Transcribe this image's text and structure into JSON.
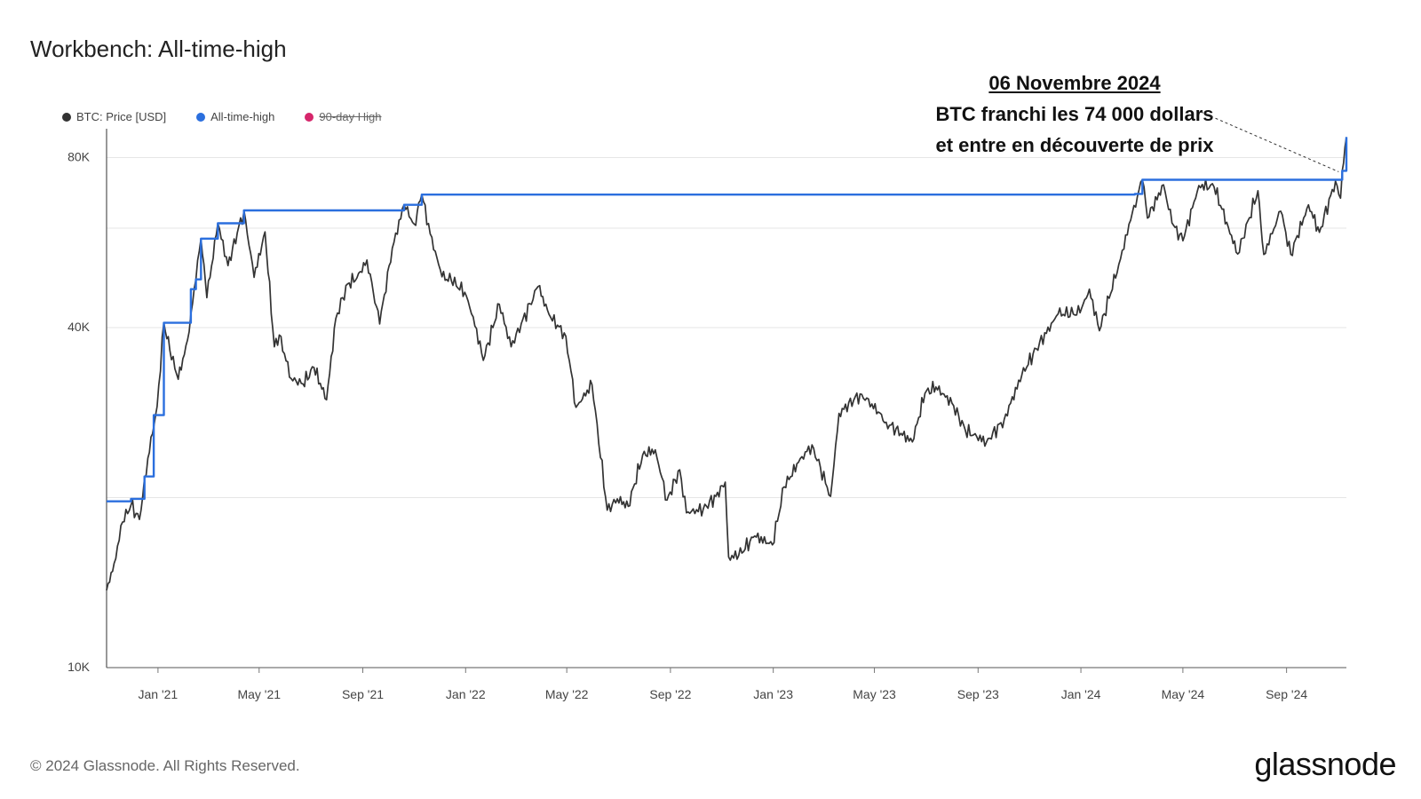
{
  "header": {
    "title": "Workbench: All-time-high"
  },
  "legend": [
    {
      "label": "BTC: Price [USD]",
      "color": "#333333",
      "active": true
    },
    {
      "label": "All-time-high",
      "color": "#2b6fde",
      "active": true
    },
    {
      "label": "90-day High",
      "color": "#d6266b",
      "active": false
    }
  ],
  "annotation": {
    "date": "06 Novembre 2024",
    "line1": "BTC franchi les 74 000 dollars",
    "line2": "et entre en découverte de prix"
  },
  "footer": {
    "copyright": "© 2024 Glassnode. All Rights Reserved.",
    "brand": "glassnode"
  },
  "chart_data": {
    "type": "line",
    "yscale": "log",
    "ylim": [
      10000,
      90000
    ],
    "yticks": [
      {
        "value": 10000,
        "label": "10K"
      },
      {
        "value": 40000,
        "label": "40K"
      },
      {
        "value": 80000,
        "label": "80K"
      }
    ],
    "ygrid": [
      20000,
      40000,
      60000,
      80000
    ],
    "xlim": [
      "2020-11-01",
      "2024-11-11"
    ],
    "xticks": [
      {
        "date": "2021-01-01",
        "label": "Jan '21"
      },
      {
        "date": "2021-05-01",
        "label": "May '21"
      },
      {
        "date": "2021-09-01",
        "label": "Sep '21"
      },
      {
        "date": "2022-01-01",
        "label": "Jan '22"
      },
      {
        "date": "2022-05-01",
        "label": "May '22"
      },
      {
        "date": "2022-09-01",
        "label": "Sep '22"
      },
      {
        "date": "2023-01-01",
        "label": "Jan '23"
      },
      {
        "date": "2023-05-01",
        "label": "May '23"
      },
      {
        "date": "2023-09-01",
        "label": "Sep '23"
      },
      {
        "date": "2024-01-01",
        "label": "Jan '24"
      },
      {
        "date": "2024-05-01",
        "label": "May '24"
      },
      {
        "date": "2024-09-01",
        "label": "Sep '24"
      }
    ],
    "series": [
      {
        "name": "BTC: Price [USD]",
        "color": "#333333",
        "points": [
          [
            "2020-11-01",
            13700
          ],
          [
            "2020-11-10",
            15300
          ],
          [
            "2020-11-20",
            18100
          ],
          [
            "2020-11-30",
            19400
          ],
          [
            "2020-12-10",
            18300
          ],
          [
            "2020-12-20",
            23500
          ],
          [
            "2020-12-31",
            29000
          ],
          [
            "2021-01-08",
            40800
          ],
          [
            "2021-01-15",
            36500
          ],
          [
            "2021-01-25",
            32400
          ],
          [
            "2021-02-05",
            38000
          ],
          [
            "2021-02-15",
            48700
          ],
          [
            "2021-02-21",
            57500
          ],
          [
            "2021-02-28",
            45200
          ],
          [
            "2021-03-13",
            61200
          ],
          [
            "2021-03-25",
            51500
          ],
          [
            "2021-04-05",
            58800
          ],
          [
            "2021-04-13",
            64500
          ],
          [
            "2021-04-25",
            49100
          ],
          [
            "2021-05-08",
            59100
          ],
          [
            "2021-05-19",
            37000
          ],
          [
            "2021-05-25",
            38800
          ],
          [
            "2021-06-08",
            32500
          ],
          [
            "2021-06-22",
            31800
          ],
          [
            "2021-07-05",
            34000
          ],
          [
            "2021-07-20",
            29800
          ],
          [
            "2021-07-31",
            41500
          ],
          [
            "2021-08-14",
            47800
          ],
          [
            "2021-08-25",
            49000
          ],
          [
            "2021-09-06",
            52700
          ],
          [
            "2021-09-21",
            40600
          ],
          [
            "2021-10-06",
            55300
          ],
          [
            "2021-10-20",
            66000
          ],
          [
            "2021-11-01",
            61000
          ],
          [
            "2021-11-10",
            68800
          ],
          [
            "2021-11-20",
            58600
          ],
          [
            "2021-12-04",
            49200
          ],
          [
            "2021-12-15",
            48500
          ],
          [
            "2021-12-31",
            46200
          ],
          [
            "2022-01-10",
            41800
          ],
          [
            "2022-01-22",
            35000
          ],
          [
            "2022-02-10",
            44000
          ],
          [
            "2022-02-24",
            37000
          ],
          [
            "2022-03-28",
            47300
          ],
          [
            "2022-04-10",
            42200
          ],
          [
            "2022-04-30",
            38600
          ],
          [
            "2022-05-12",
            28900
          ],
          [
            "2022-05-31",
            31700
          ],
          [
            "2022-06-18",
            19000
          ],
          [
            "2022-06-30",
            19900
          ],
          [
            "2022-07-13",
            19300
          ],
          [
            "2022-07-30",
            23800
          ],
          [
            "2022-08-14",
            24300
          ],
          [
            "2022-08-28",
            19800
          ],
          [
            "2022-09-12",
            22400
          ],
          [
            "2022-09-20",
            18800
          ],
          [
            "2022-10-10",
            19100
          ],
          [
            "2022-10-25",
            20100
          ],
          [
            "2022-11-05",
            21300
          ],
          [
            "2022-11-09",
            15700
          ],
          [
            "2022-11-21",
            15800
          ],
          [
            "2022-12-10",
            17100
          ],
          [
            "2022-12-31",
            16500
          ],
          [
            "2023-01-14",
            20900
          ],
          [
            "2023-01-31",
            23100
          ],
          [
            "2023-02-16",
            24800
          ],
          [
            "2023-03-10",
            20100
          ],
          [
            "2023-03-20",
            28200
          ],
          [
            "2023-04-14",
            30500
          ],
          [
            "2023-04-28",
            29300
          ],
          [
            "2023-05-15",
            27200
          ],
          [
            "2023-06-15",
            25100
          ],
          [
            "2023-06-30",
            30600
          ],
          [
            "2023-07-13",
            31400
          ],
          [
            "2023-08-01",
            29400
          ],
          [
            "2023-08-17",
            26300
          ],
          [
            "2023-09-11",
            25100
          ],
          [
            "2023-10-02",
            27500
          ],
          [
            "2023-10-23",
            33000
          ],
          [
            "2023-11-09",
            36700
          ],
          [
            "2023-12-05",
            42300
          ],
          [
            "2023-12-31",
            42500
          ],
          [
            "2024-01-11",
            46800
          ],
          [
            "2024-01-23",
            39500
          ],
          [
            "2024-02-15",
            51800
          ],
          [
            "2024-02-29",
            62000
          ],
          [
            "2024-03-14",
            73100
          ],
          [
            "2024-03-20",
            62500
          ],
          [
            "2024-04-08",
            71600
          ],
          [
            "2024-04-18",
            61300
          ],
          [
            "2024-05-01",
            57000
          ],
          [
            "2024-05-20",
            71400
          ],
          [
            "2024-06-07",
            71000
          ],
          [
            "2024-06-24",
            60200
          ],
          [
            "2024-07-05",
            54000
          ],
          [
            "2024-07-29",
            69900
          ],
          [
            "2024-08-05",
            53900
          ],
          [
            "2024-08-25",
            64300
          ],
          [
            "2024-09-06",
            53900
          ],
          [
            "2024-09-27",
            66000
          ],
          [
            "2024-10-10",
            59000
          ],
          [
            "2024-10-29",
            72700
          ],
          [
            "2024-11-04",
            67800
          ],
          [
            "2024-11-06",
            75800
          ],
          [
            "2024-11-11",
            87000
          ]
        ]
      },
      {
        "name": "All-time-high",
        "color": "#2b6fde",
        "step": true,
        "points": [
          [
            "2020-11-01",
            19700
          ],
          [
            "2020-11-30",
            19900
          ],
          [
            "2020-12-16",
            21800
          ],
          [
            "2020-12-27",
            28000
          ],
          [
            "2021-01-08",
            40800
          ],
          [
            "2021-02-09",
            46800
          ],
          [
            "2021-02-15",
            48700
          ],
          [
            "2021-02-21",
            57500
          ],
          [
            "2021-03-13",
            61200
          ],
          [
            "2021-04-13",
            64500
          ],
          [
            "2021-10-20",
            66000
          ],
          [
            "2021-11-10",
            68800
          ],
          [
            "2024-03-05",
            69000
          ],
          [
            "2024-03-14",
            73100
          ],
          [
            "2024-11-06",
            75800
          ],
          [
            "2024-11-11",
            87000
          ]
        ]
      },
      {
        "name": "90-day High",
        "color": "#d6266b",
        "visible": false,
        "points": []
      }
    ],
    "annotation_target": {
      "date": "2024-11-06",
      "value": 75800
    }
  }
}
